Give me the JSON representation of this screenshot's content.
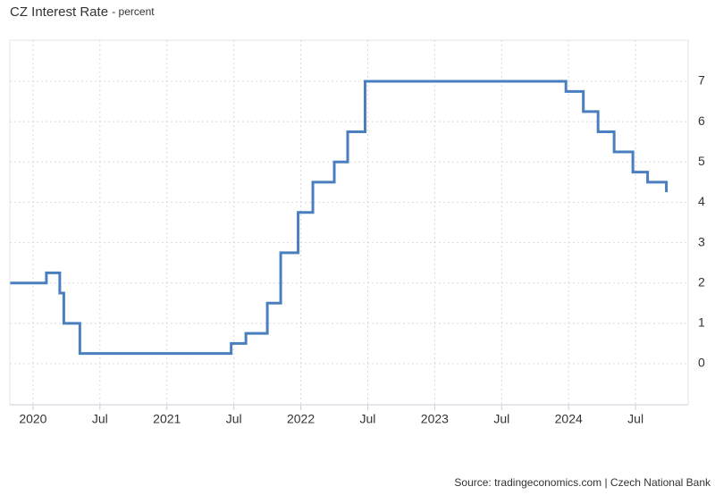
{
  "chart_data": {
    "type": "line",
    "title": "CZ Interest Rate",
    "subtitle": "- percent",
    "source": "Source: tradingeconomics.com | Czech National Bank",
    "step": true,
    "grid": true,
    "y_axis_side": "right",
    "x": [
      2019.83,
      2020.1,
      2020.2,
      2020.23,
      2020.35,
      2021.48,
      2021.59,
      2021.75,
      2021.85,
      2021.98,
      2022.09,
      2022.25,
      2022.35,
      2022.48,
      2023.98,
      2024.11,
      2024.22,
      2024.34,
      2024.48,
      2024.59,
      2024.73
    ],
    "series": [
      {
        "name": "CZ Interest Rate",
        "color": "#4a7fbf",
        "values": [
          2,
          2.25,
          1.75,
          1,
          0.25,
          0.5,
          0.75,
          1.5,
          2.75,
          3.75,
          4.5,
          5,
          5.75,
          7,
          6.75,
          6.25,
          5.75,
          5.25,
          4.75,
          4.5,
          4.25
        ]
      }
    ],
    "xlim": [
      2019.827,
      2024.893
    ],
    "xticks": [
      {
        "value": 2020,
        "label": "2020"
      },
      {
        "value": 2020.5,
        "label": "Jul"
      },
      {
        "value": 2021,
        "label": "2021"
      },
      {
        "value": 2021.5,
        "label": "Jul"
      },
      {
        "value": 2022,
        "label": "2022"
      },
      {
        "value": 2022.5,
        "label": "Jul"
      },
      {
        "value": 2023,
        "label": "2023"
      },
      {
        "value": 2023.5,
        "label": "Jul"
      },
      {
        "value": 2024,
        "label": "2024"
      },
      {
        "value": 2024.5,
        "label": "Jul"
      }
    ],
    "ylim": [
      -1.02,
      8.02
    ],
    "yticks": [
      0,
      1,
      2,
      3,
      4,
      5,
      6,
      7
    ]
  }
}
